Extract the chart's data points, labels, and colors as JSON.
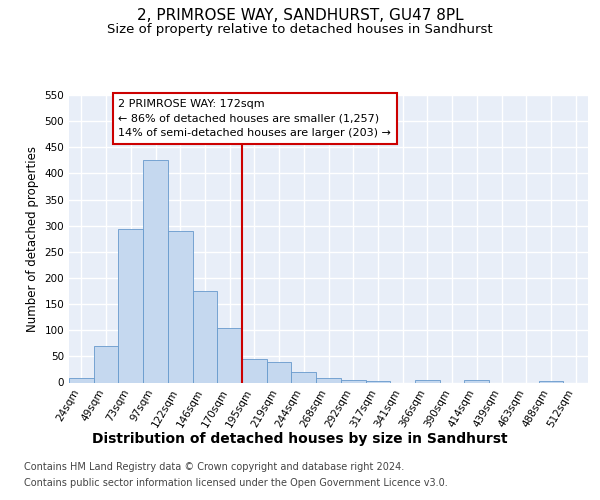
{
  "title": "2, PRIMROSE WAY, SANDHURST, GU47 8PL",
  "subtitle": "Size of property relative to detached houses in Sandhurst",
  "xlabel": "Distribution of detached houses by size in Sandhurst",
  "ylabel": "Number of detached properties",
  "categories": [
    "24sqm",
    "49sqm",
    "73sqm",
    "97sqm",
    "122sqm",
    "146sqm",
    "170sqm",
    "195sqm",
    "219sqm",
    "244sqm",
    "268sqm",
    "292sqm",
    "317sqm",
    "341sqm",
    "366sqm",
    "390sqm",
    "414sqm",
    "439sqm",
    "463sqm",
    "488sqm",
    "512sqm"
  ],
  "bar_heights": [
    8,
    70,
    293,
    425,
    290,
    175,
    105,
    45,
    40,
    20,
    8,
    5,
    2,
    0,
    4,
    0,
    4,
    0,
    0,
    3,
    0
  ],
  "bar_color": "#c5d8ef",
  "bar_edge_color": "#6699cc",
  "vline_x": 6.5,
  "vline_color": "#cc0000",
  "annotation_line1": "2 PRIMROSE WAY: 172sqm",
  "annotation_line2": "← 86% of detached houses are smaller (1,257)",
  "annotation_line3": "14% of semi-detached houses are larger (203) →",
  "annotation_box_facecolor": "#ffffff",
  "annotation_box_edgecolor": "#cc0000",
  "ylim": [
    0,
    550
  ],
  "yticks": [
    0,
    50,
    100,
    150,
    200,
    250,
    300,
    350,
    400,
    450,
    500,
    550
  ],
  "bg_color": "#e8eef8",
  "grid_color": "#ffffff",
  "fig_bg_color": "#ffffff",
  "title_fontsize": 11,
  "subtitle_fontsize": 9.5,
  "xlabel_fontsize": 10,
  "ylabel_fontsize": 8.5,
  "tick_fontsize": 7.5,
  "annotation_fontsize": 8,
  "footer_fontsize": 7
}
